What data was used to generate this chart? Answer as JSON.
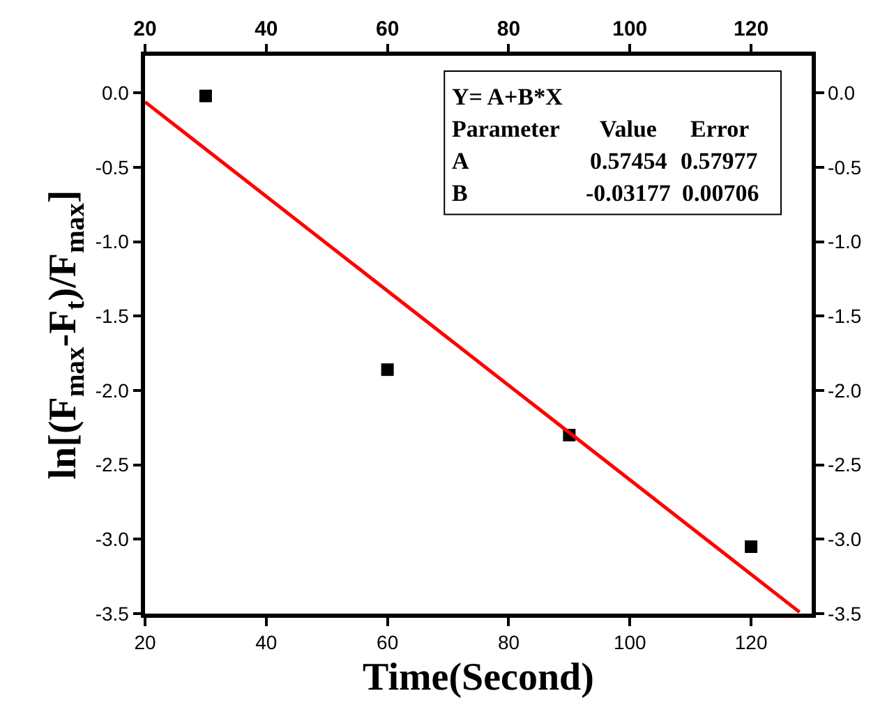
{
  "chart_data": {
    "type": "scatter",
    "xlabel": "Time(Second)",
    "ylabel": "ln[(F$_{max}$-F$_{t}$)/F$_{max}$]",
    "x": [
      30,
      60,
      90,
      120
    ],
    "series": [
      {
        "color": "#000000",
        "marker": "square",
        "values": [
          -0.02,
          -1.86,
          -2.3,
          -3.05
        ]
      },
      {
        "type": "line",
        "color": "#ff0000",
        "x": [
          20,
          128
        ],
        "values": [
          -0.06,
          -3.49
        ]
      }
    ],
    "xlim": [
      20,
      130
    ],
    "xticks": [
      20,
      40,
      60,
      80,
      100,
      120
    ],
    "x2lim": [
      20,
      130
    ],
    "x2ticks": [
      20,
      40,
      60,
      80,
      100,
      120
    ],
    "ylim": [
      -3.5,
      0.25
    ],
    "yticks": [
      {
        "value": 0,
        "label": "0.0"
      },
      {
        "value": -0.5,
        "label": "-0.5"
      },
      {
        "value": -1,
        "label": "-1.0"
      },
      {
        "value": -1.5,
        "label": "-1.5"
      },
      {
        "value": -2,
        "label": "-2.0"
      },
      {
        "value": -2.5,
        "label": "-2.5"
      },
      {
        "value": -3,
        "label": "-3.0"
      },
      {
        "value": -3.5,
        "label": "-3.5"
      }
    ],
    "y2lim": [
      -3.5,
      0.25
    ],
    "y2ticks": [
      {
        "value": 0,
        "label": "0.0"
      },
      {
        "value": -0.5,
        "label": "-0.5"
      },
      {
        "value": -1,
        "label": "-1.0"
      },
      {
        "value": -1.5,
        "label": "-1.5"
      },
      {
        "value": -2,
        "label": "-2.0"
      },
      {
        "value": -2.5,
        "label": "-2.5"
      },
      {
        "value": -3,
        "label": "-3.0"
      },
      {
        "value": -3.5,
        "label": "-3.5"
      }
    ],
    "annotations": [
      "Y= A+B*X",
      "Parameter  Value  Error",
      "A  0.57454  0.57977",
      "B  -0.03177  0.00706"
    ],
    "grid": false
  }
}
